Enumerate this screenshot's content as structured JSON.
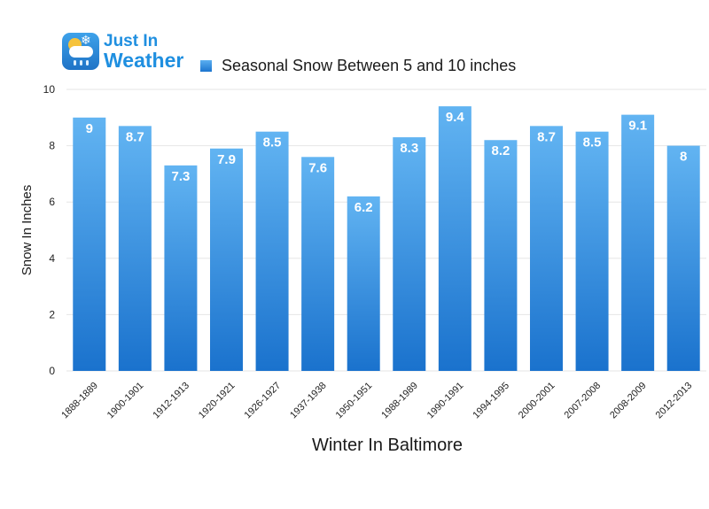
{
  "logo": {
    "line1": "Just In",
    "line2": "Weather",
    "snow_glyph": "❄",
    "icon": "weather-cloud-sun-snow-icon"
  },
  "chart_data": {
    "type": "bar",
    "categories": [
      "1888-1889",
      "1900-1901",
      "1912-1913",
      "1920-1921",
      "1926-1927",
      "1937-1938",
      "1950-1951",
      "1988-1989",
      "1990-1991",
      "1994-1995",
      "2000-2001",
      "2007-2008",
      "2008-2009",
      "2012-2013"
    ],
    "series": [
      {
        "name": "Seasonal Snow Between 5 and 10 inches",
        "values": [
          9,
          8.7,
          7.3,
          7.9,
          8.5,
          7.6,
          6.2,
          8.3,
          9.4,
          8.2,
          8.7,
          8.5,
          9.1,
          8
        ]
      }
    ],
    "xlabel": "Winter In Baltimore",
    "ylabel": "Snow In Inches",
    "ylim": [
      0,
      10
    ],
    "yticks": [
      0,
      2,
      4,
      6,
      8,
      10
    ],
    "grid": true,
    "legend_position": "top",
    "colors": {
      "bar_top": "#62b4f2",
      "bar_bottom": "#1a72cd",
      "value_label": "#ffffff",
      "grid": "#e6e6e6"
    }
  }
}
